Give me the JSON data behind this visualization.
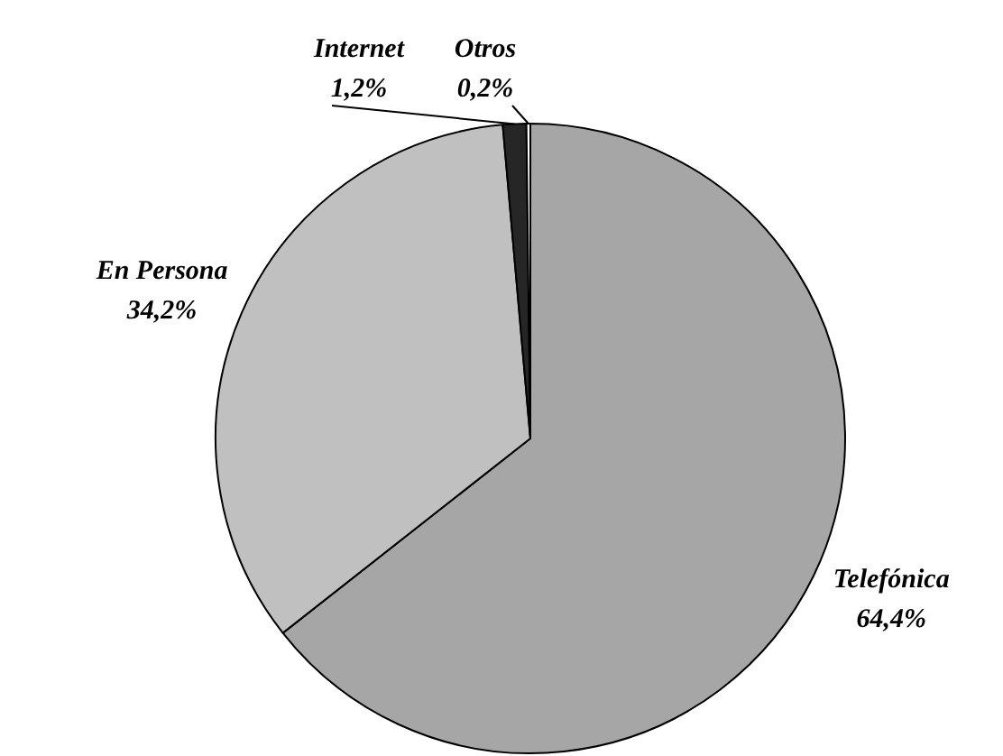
{
  "chart_data": {
    "type": "pie",
    "categories": [
      "Telefónica",
      "En Persona",
      "Internet",
      "Otros"
    ],
    "values": [
      64.4,
      34.2,
      1.2,
      0.2
    ],
    "colors": [
      "#a6a6a6",
      "#c0c0c0",
      "#262626",
      "#ffffff"
    ],
    "value_labels": [
      "64,4%",
      "34,2%",
      "1,2%",
      "0,2%"
    ],
    "legend": false
  }
}
